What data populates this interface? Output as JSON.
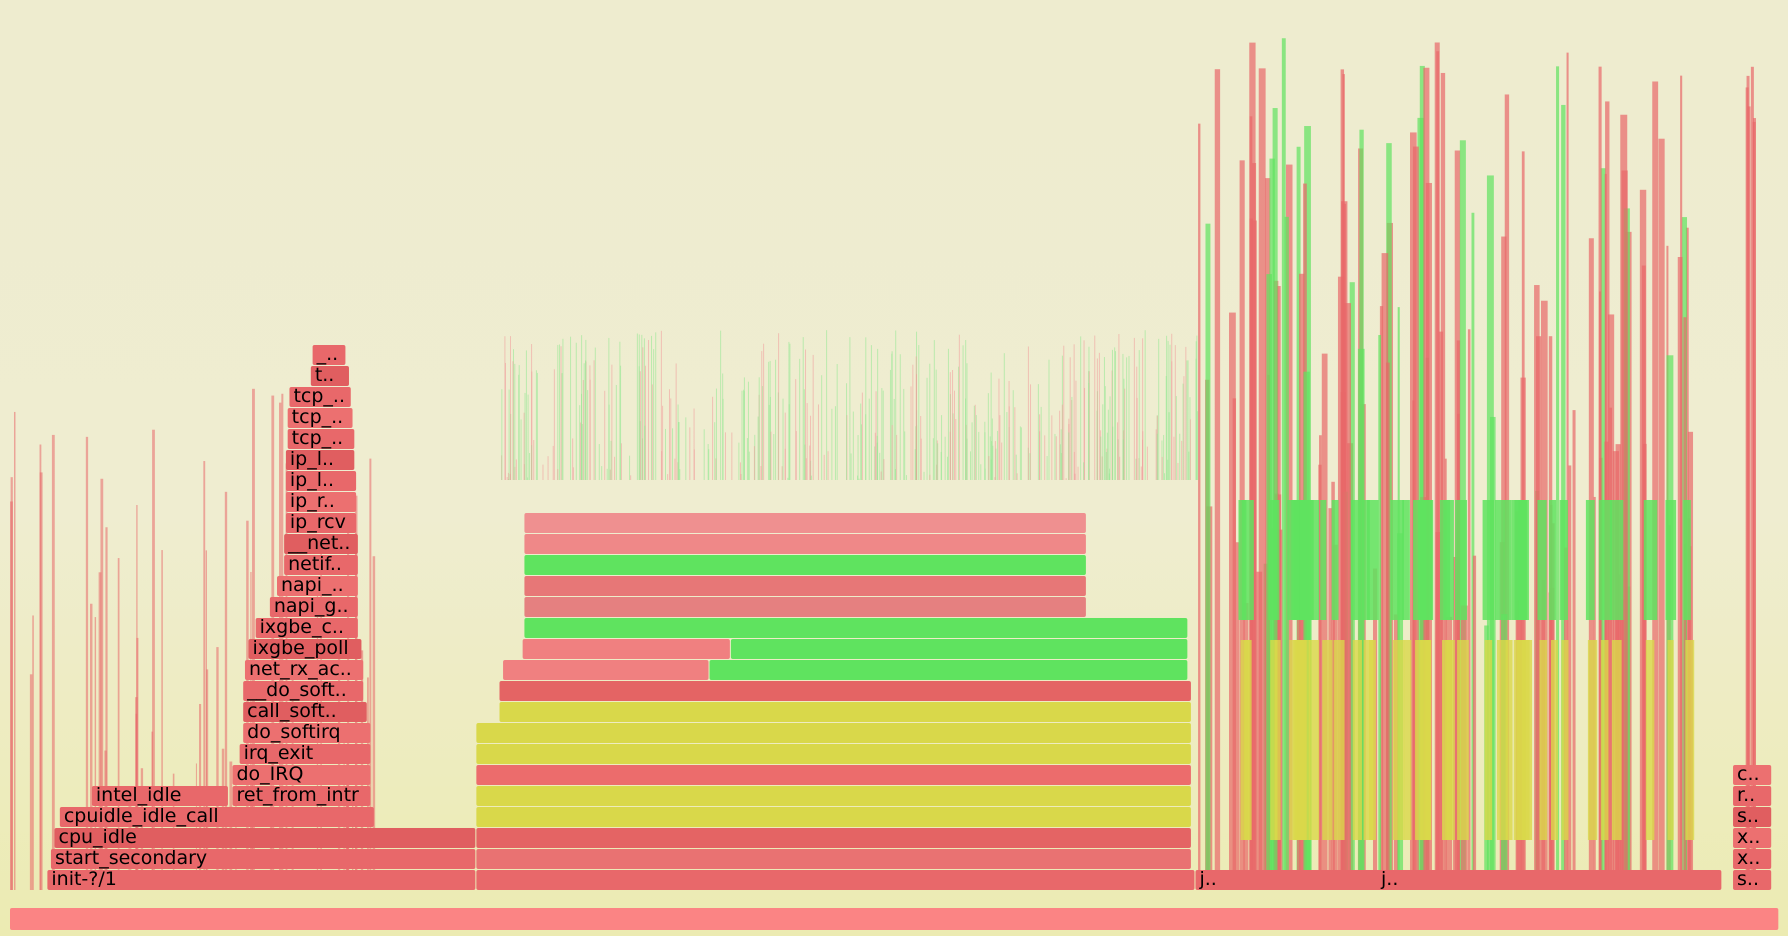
{
  "chart_data": {
    "type": "flamegraph",
    "title": "",
    "colors": {
      "background_top": "#eeeccf",
      "background_bottom": "#ecebb2",
      "kernel": "#e8686a",
      "kernel_light": "#f08080",
      "green": "#5fe35f",
      "yellow": "#d9d84a",
      "root": "#fb8484"
    },
    "frames": [
      {
        "label": "",
        "depth": 0,
        "x0": 0.0,
        "x1": 99.4,
        "color": "#fb8484"
      },
      {
        "label": "init-?/1",
        "depth": 1,
        "x0": 2.1,
        "x1": 26.2,
        "color": "#e8686a"
      },
      {
        "label": "start_secondary",
        "depth": 2,
        "x0": 2.3,
        "x1": 26.2,
        "color": "#e8686a"
      },
      {
        "label": "cpu_idle",
        "depth": 3,
        "x0": 2.5,
        "x1": 26.2,
        "color": "#e05e60"
      },
      {
        "label": "cpuidle_idle_call",
        "depth": 4,
        "x0": 2.8,
        "x1": 20.5,
        "color": "#e8686a"
      },
      {
        "label": "intel_idle",
        "depth": 5,
        "x0": 4.6,
        "x1": 12.3,
        "color": "#e8686a"
      },
      {
        "label": "ret_from_intr",
        "depth": 5,
        "x0": 12.5,
        "x1": 20.3,
        "color": "#e8686a"
      },
      {
        "label": "do_IRQ",
        "depth": 6,
        "x0": 12.5,
        "x1": 20.3,
        "color": "#ec7070"
      },
      {
        "label": "irq_exit",
        "depth": 7,
        "x0": 12.9,
        "x1": 20.3,
        "color": "#e8686a"
      },
      {
        "label": "do_softirq",
        "depth": 8,
        "x0": 13.1,
        "x1": 20.3,
        "color": "#ec7070"
      },
      {
        "label": "call_soft..",
        "depth": 9,
        "x0": 13.1,
        "x1": 20.1,
        "color": "#e05e60"
      },
      {
        "label": "__do_soft..",
        "depth": 10,
        "x0": 13.1,
        "x1": 19.9,
        "color": "#e8686a"
      },
      {
        "label": "net_rx_ac..",
        "depth": 11,
        "x0": 13.2,
        "x1": 19.9,
        "color": "#ec7070"
      },
      {
        "label": "ixgbe_poll",
        "depth": 12,
        "x0": 13.4,
        "x1": 19.8,
        "color": "#e05e60"
      },
      {
        "label": "ixgbe_c..",
        "depth": 13,
        "x0": 13.8,
        "x1": 19.6,
        "color": "#e8686a"
      },
      {
        "label": "napi_g..",
        "depth": 14,
        "x0": 14.6,
        "x1": 19.6,
        "color": "#e8686a"
      },
      {
        "label": "napi_..",
        "depth": 15,
        "x0": 15.0,
        "x1": 19.6,
        "color": "#ec7070"
      },
      {
        "label": "netif..",
        "depth": 16,
        "x0": 15.4,
        "x1": 19.6,
        "color": "#e8686a"
      },
      {
        "label": "__net..",
        "depth": 17,
        "x0": 15.4,
        "x1": 19.6,
        "color": "#e05e60"
      },
      {
        "label": "ip_rcv",
        "depth": 18,
        "x0": 15.5,
        "x1": 19.5,
        "color": "#e8686a"
      },
      {
        "label": "ip_r..",
        "depth": 19,
        "x0": 15.5,
        "x1": 19.5,
        "color": "#ec7070"
      },
      {
        "label": "ip_l..",
        "depth": 20,
        "x0": 15.5,
        "x1": 19.5,
        "color": "#e8686a"
      },
      {
        "label": "ip_l..",
        "depth": 21,
        "x0": 15.5,
        "x1": 19.4,
        "color": "#e05e60"
      },
      {
        "label": "tcp_..",
        "depth": 22,
        "x0": 15.6,
        "x1": 19.4,
        "color": "#e8686a"
      },
      {
        "label": "tcp_..",
        "depth": 23,
        "x0": 15.6,
        "x1": 19.3,
        "color": "#ec7070"
      },
      {
        "label": "tcp_..",
        "depth": 24,
        "x0": 15.7,
        "x1": 19.2,
        "color": "#e8686a"
      },
      {
        "label": "t..",
        "depth": 25,
        "x0": 16.9,
        "x1": 19.1,
        "color": "#e05e60"
      },
      {
        "label": "_..",
        "depth": 26,
        "x0": 17.0,
        "x1": 18.9,
        "color": "#e8686a"
      },
      {
        "label": "",
        "depth": 1,
        "x0": 26.2,
        "x1": 66.6,
        "color": "#e8686a"
      },
      {
        "label": "",
        "depth": 2,
        "x0": 26.2,
        "x1": 66.4,
        "color": "#e97272"
      },
      {
        "label": "",
        "depth": 3,
        "x0": 26.2,
        "x1": 66.4,
        "color": "#e46464"
      },
      {
        "label": "",
        "depth": 4,
        "x0": 26.2,
        "x1": 66.4,
        "color": "#d9d84a"
      },
      {
        "label": "",
        "depth": 5,
        "x0": 26.2,
        "x1": 66.4,
        "color": "#d9d84a"
      },
      {
        "label": "",
        "depth": 6,
        "x0": 26.2,
        "x1": 66.4,
        "color": "#ec6c6c"
      },
      {
        "label": "",
        "depth": 7,
        "x0": 26.2,
        "x1": 66.4,
        "color": "#d9d84a"
      },
      {
        "label": "",
        "depth": 8,
        "x0": 26.2,
        "x1": 66.4,
        "color": "#d9d84a"
      },
      {
        "label": "",
        "depth": 9,
        "x0": 27.5,
        "x1": 66.4,
        "color": "#d9d84a"
      },
      {
        "label": "",
        "depth": 10,
        "x0": 27.5,
        "x1": 66.4,
        "color": "#e46464"
      },
      {
        "label": "",
        "depth": 11,
        "x0": 27.7,
        "x1": 39.3,
        "color": "#f08080"
      },
      {
        "label": "",
        "depth": 11,
        "x0": 39.3,
        "x1": 66.2,
        "color": "#5fe35f"
      },
      {
        "label": "",
        "depth": 12,
        "x0": 28.8,
        "x1": 40.5,
        "color": "#f08080"
      },
      {
        "label": "",
        "depth": 12,
        "x0": 40.5,
        "x1": 66.2,
        "color": "#5fe35f"
      },
      {
        "label": "",
        "depth": 13,
        "x0": 28.9,
        "x1": 66.2,
        "color": "#5fe35f"
      },
      {
        "label": "",
        "depth": 14,
        "x0": 28.9,
        "x1": 60.5,
        "color": "#e58080"
      },
      {
        "label": "",
        "depth": 15,
        "x0": 28.9,
        "x1": 60.5,
        "color": "#e77777"
      },
      {
        "label": "",
        "depth": 16,
        "x0": 28.9,
        "x1": 60.5,
        "color": "#5fe35f"
      },
      {
        "label": "",
        "depth": 17,
        "x0": 28.9,
        "x1": 60.5,
        "color": "#ef8888"
      },
      {
        "label": "",
        "depth": 18,
        "x0": 28.9,
        "x1": 60.5,
        "color": "#ef9090"
      },
      {
        "label": "j..",
        "depth": 1,
        "x0": 66.6,
        "x1": 96.2,
        "color": "#e8686a"
      },
      {
        "label": "j..",
        "depth": 1,
        "x0": 76.8,
        "x1": 78.2,
        "color": "#e8686a"
      },
      {
        "label": "s..",
        "depth": 1,
        "x0": 96.8,
        "x1": 99.0,
        "color": "#e8686a"
      },
      {
        "label": "x..",
        "depth": 2,
        "x0": 96.8,
        "x1": 99.0,
        "color": "#e8686a"
      },
      {
        "label": "x..",
        "depth": 3,
        "x0": 96.8,
        "x1": 99.0,
        "color": "#ec7070"
      },
      {
        "label": "s..",
        "depth": 4,
        "x0": 96.8,
        "x1": 99.0,
        "color": "#e05e60"
      },
      {
        "label": "r..",
        "depth": 5,
        "x0": 96.8,
        "x1": 99.0,
        "color": "#e8686a"
      },
      {
        "label": "c..",
        "depth": 6,
        "x0": 96.8,
        "x1": 99.0,
        "color": "#ec7070"
      }
    ]
  }
}
